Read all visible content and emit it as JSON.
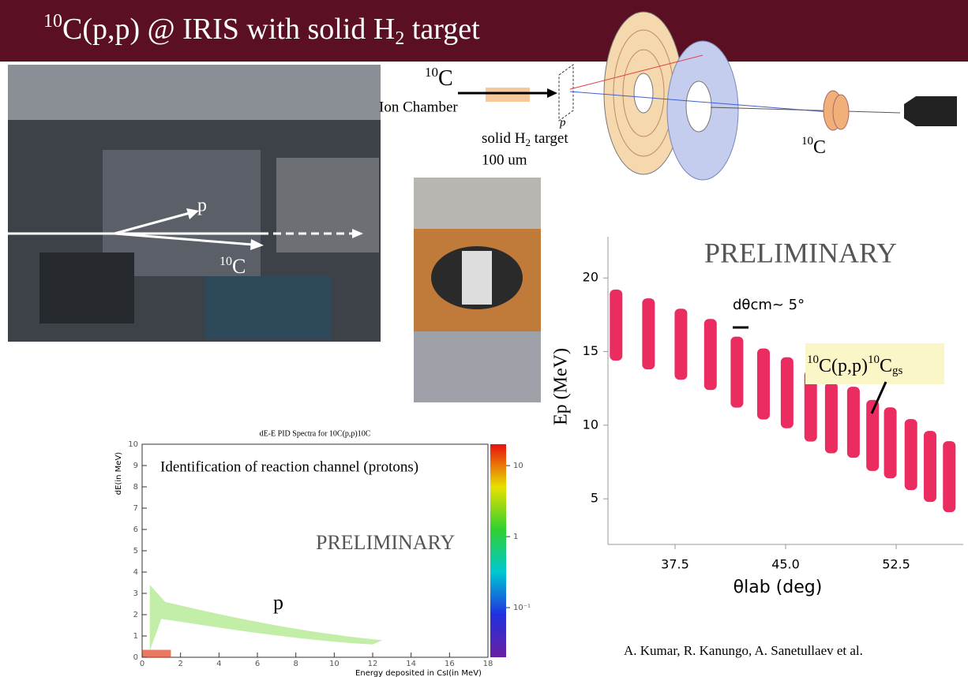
{
  "title": {
    "sup": "10",
    "main": "C(p,p)  @ IRIS  with solid H",
    "sub": "2",
    "end": " target"
  },
  "setup": {
    "beam_sup": "10",
    "beam": "C",
    "ion_chamber": "Ion Chamber",
    "target_label": "solid H",
    "target_sub": "2",
    "target_word": "  target",
    "thickness": "100 um",
    "proton": "p",
    "recoil_sup": "10",
    "recoil": "C"
  },
  "photo": {
    "proton": "p",
    "recoil_sup": "10",
    "recoil": "C"
  },
  "chart_data": [
    {
      "type": "scatter",
      "x": [
        33.5,
        35.7,
        37.9,
        39.9,
        41.7,
        43.5,
        45.1,
        46.7,
        48.1,
        49.6,
        50.9,
        52.1,
        53.5,
        54.8,
        56.1
      ],
      "values": [
        16.8,
        16.2,
        15.5,
        14.8,
        13.6,
        12.8,
        12.2,
        11.3,
        10.5,
        10.2,
        9.3,
        8.8,
        8.0,
        7.2,
        6.5
      ],
      "color": "#e8154f",
      "xlim": [
        32.95,
        57.05
      ],
      "ylim": [
        1.9,
        22.8
      ],
      "xticks": [
        37.5,
        {
          "value": 45,
          "label": "45.0"
        },
        52.5
      ],
      "yticks": [
        5,
        10,
        15,
        20
      ],
      "xlabel": "θlab  (deg)",
      "ylabel": "Ep (MeV)",
      "annotations": {
        "preliminary": "PRELIMINARY",
        "dtheta": "dθcm~ 5°",
        "reaction": {
          "sup1": "10",
          "a": "C(p,p)",
          "sup2": "10",
          "b": "C",
          "sub": "gs"
        }
      }
    },
    {
      "type": "heatmap",
      "title": "dE-E PID Spectra for 10C(p,p)10C",
      "xlabel": "Energy deposited in CsI(in MeV)",
      "ylabel": "dE(in MeV)",
      "xlim": [
        0,
        18
      ],
      "ylim": [
        0,
        10
      ],
      "xticks": [
        0,
        2,
        4,
        6,
        8,
        10,
        12,
        14,
        16,
        18
      ],
      "yticks": [
        0,
        1,
        2,
        3,
        4,
        5,
        6,
        7,
        8,
        9,
        10
      ],
      "clim": [
        0.02,
        20
      ],
      "clog": true,
      "cticks": [
        10,
        1,
        {
          "value": 0.1,
          "label": "10⁻¹"
        }
      ],
      "annotations": {
        "channel": "Identification of reaction channel (protons)",
        "preliminary": "PRELIMINARY",
        "proton": "p"
      }
    }
  ],
  "credit": "A. Kumar, R. Kanungo, A. Sanetullaev et al."
}
